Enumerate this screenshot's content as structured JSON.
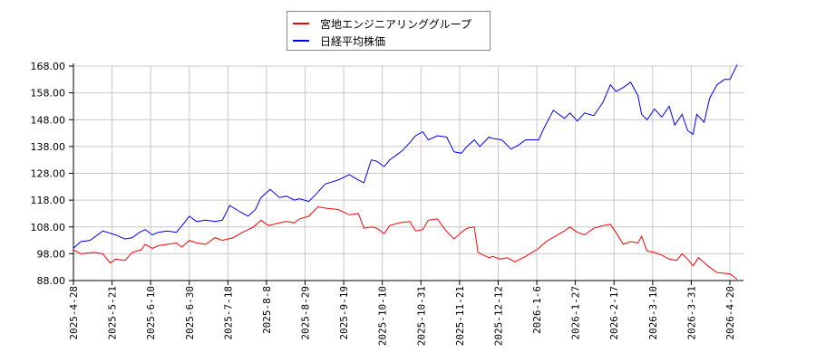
{
  "legend": {
    "items": [
      {
        "label": "宮地エンジニアリンググループ",
        "color": "#ff0000"
      },
      {
        "label": "日経平均株価",
        "color": "#0000ff"
      }
    ]
  },
  "chart_data": {
    "type": "line",
    "title": "",
    "xlabel": "",
    "ylabel": "",
    "ylim": [
      88,
      168
    ],
    "y_ticks": [
      "168.00",
      "158.00",
      "148.00",
      "138.00",
      "128.00",
      "118.00",
      "108.00",
      "98.00",
      "88.00"
    ],
    "x_ticks": [
      "2025-4-28",
      "2025-5-21",
      "2025-6-10",
      "2025-6-30",
      "2025-7-18",
      "2025-8-8",
      "2025-8-29",
      "2025-9-19",
      "2025-10-10",
      "2025-10-31",
      "2025-11-21",
      "2025-12-12",
      "2026-1-6",
      "2026-1-27",
      "2026-2-17",
      "2026-3-10",
      "2026-3-31",
      "2026-4-20"
    ],
    "grid": true,
    "legend_position": "top-center",
    "series": [
      {
        "name": "宮地エンジニアリンググループ",
        "color": "#ff0000",
        "points": [
          [
            "2025-4-28",
            99.5
          ],
          [
            "2025-5-2",
            98.0
          ],
          [
            "2025-5-9",
            98.5
          ],
          [
            "2025-5-14",
            98.0
          ],
          [
            "2025-5-18",
            94.5
          ],
          [
            "2025-5-21",
            96.0
          ],
          [
            "2025-5-26",
            95.5
          ],
          [
            "2025-5-30",
            98.5
          ],
          [
            "2025-6-4",
            99.5
          ],
          [
            "2025-6-6",
            101.5
          ],
          [
            "2025-6-10",
            100.0
          ],
          [
            "2025-6-13",
            101.0
          ],
          [
            "2025-6-18",
            101.5
          ],
          [
            "2025-6-23",
            102.0
          ],
          [
            "2025-6-26",
            100.5
          ],
          [
            "2025-6-30",
            103.0
          ],
          [
            "2025-7-4",
            102.0
          ],
          [
            "2025-7-9",
            101.5
          ],
          [
            "2025-7-14",
            104.0
          ],
          [
            "2025-7-18",
            103.0
          ],
          [
            "2025-7-24",
            104.0
          ],
          [
            "2025-7-29",
            106.0
          ],
          [
            "2025-8-4",
            108.0
          ],
          [
            "2025-8-8",
            110.5
          ],
          [
            "2025-8-12",
            108.5
          ],
          [
            "2025-8-18",
            109.5
          ],
          [
            "2025-8-22",
            110.0
          ],
          [
            "2025-8-26",
            109.5
          ],
          [
            "2025-8-29",
            111.0
          ],
          [
            "2025-9-3",
            112.0
          ],
          [
            "2025-9-8",
            115.5
          ],
          [
            "2025-9-12",
            115.0
          ],
          [
            "2025-9-19",
            114.5
          ],
          [
            "2025-9-25",
            112.5
          ],
          [
            "2025-9-30",
            113.0
          ],
          [
            "2025-10-3",
            107.5
          ],
          [
            "2025-10-7",
            108.0
          ],
          [
            "2025-10-10",
            107.5
          ],
          [
            "2025-10-14",
            105.5
          ],
          [
            "2025-10-17",
            108.5
          ],
          [
            "2025-10-22",
            109.5
          ],
          [
            "2025-10-28",
            110.0
          ],
          [
            "2025-10-31",
            106.5
          ],
          [
            "2025-11-4",
            107.0
          ],
          [
            "2025-11-7",
            110.5
          ],
          [
            "2025-11-12",
            111.0
          ],
          [
            "2025-11-16",
            107.0
          ],
          [
            "2025-11-21",
            103.5
          ],
          [
            "2025-11-25",
            106.0
          ],
          [
            "2025-11-28",
            107.5
          ],
          [
            "2025-12-2",
            108.0
          ],
          [
            "2025-12-4",
            98.5
          ],
          [
            "2025-12-10",
            96.5
          ],
          [
            "2025-12-12",
            97.0
          ],
          [
            "2025-12-16",
            96.0
          ],
          [
            "2025-12-20",
            96.5
          ],
          [
            "2025-12-24",
            95.0
          ],
          [
            "2025-12-30",
            97.0
          ],
          [
            "2026-1-6",
            100.0
          ],
          [
            "2026-1-10",
            102.5
          ],
          [
            "2026-1-15",
            104.5
          ],
          [
            "2026-1-20",
            106.5
          ],
          [
            "2026-1-23",
            108.0
          ],
          [
            "2026-1-27",
            106.0
          ],
          [
            "2026-1-31",
            105.0
          ],
          [
            "2026-2-5",
            107.5
          ],
          [
            "2026-2-10",
            108.5
          ],
          [
            "2026-2-14",
            109.0
          ],
          [
            "2026-2-17",
            106.0
          ],
          [
            "2026-2-21",
            101.5
          ],
          [
            "2026-2-25",
            102.5
          ],
          [
            "2026-3-1",
            102.0
          ],
          [
            "2026-3-3",
            104.5
          ],
          [
            "2026-3-6",
            99.0
          ],
          [
            "2026-3-10",
            98.5
          ],
          [
            "2026-3-14",
            97.5
          ],
          [
            "2026-3-18",
            96.0
          ],
          [
            "2026-3-22",
            95.5
          ],
          [
            "2026-3-25",
            98.0
          ],
          [
            "2026-3-28",
            96.0
          ],
          [
            "2026-3-31",
            93.5
          ],
          [
            "2026-4-3",
            96.5
          ],
          [
            "2026-4-8",
            93.5
          ],
          [
            "2026-4-13",
            91.0
          ],
          [
            "2026-4-20",
            90.5
          ],
          [
            "2026-4-24",
            88.5
          ]
        ]
      },
      {
        "name": "日経平均株価",
        "color": "#0000ff",
        "points": [
          [
            "2025-4-28",
            100.0
          ],
          [
            "2025-5-2",
            102.5
          ],
          [
            "2025-5-7",
            103.0
          ],
          [
            "2025-5-12",
            105.5
          ],
          [
            "2025-5-14",
            106.5
          ],
          [
            "2025-5-21",
            105.0
          ],
          [
            "2025-5-26",
            103.5
          ],
          [
            "2025-5-30",
            104.0
          ],
          [
            "2025-6-3",
            106.0
          ],
          [
            "2025-6-6",
            107.0
          ],
          [
            "2025-6-10",
            105.0
          ],
          [
            "2025-6-13",
            106.0
          ],
          [
            "2025-6-18",
            106.5
          ],
          [
            "2025-6-23",
            106.0
          ],
          [
            "2025-6-26",
            108.5
          ],
          [
            "2025-6-30",
            112.0
          ],
          [
            "2025-7-4",
            110.0
          ],
          [
            "2025-7-9",
            110.5
          ],
          [
            "2025-7-14",
            110.0
          ],
          [
            "2025-7-18",
            110.5
          ],
          [
            "2025-7-22",
            116.0
          ],
          [
            "2025-7-28",
            113.5
          ],
          [
            "2025-8-1",
            112.0
          ],
          [
            "2025-8-5",
            114.5
          ],
          [
            "2025-8-8",
            119.0
          ],
          [
            "2025-8-13",
            122.0
          ],
          [
            "2025-8-18",
            119.0
          ],
          [
            "2025-8-22",
            119.5
          ],
          [
            "2025-8-26",
            118.0
          ],
          [
            "2025-8-29",
            118.5
          ],
          [
            "2025-9-3",
            117.5
          ],
          [
            "2025-9-8",
            121.0
          ],
          [
            "2025-9-12",
            124.0
          ],
          [
            "2025-9-19",
            125.5
          ],
          [
            "2025-9-25",
            127.5
          ],
          [
            "2025-9-30",
            125.5
          ],
          [
            "2025-10-3",
            124.5
          ],
          [
            "2025-10-7",
            133.0
          ],
          [
            "2025-10-10",
            132.5
          ],
          [
            "2025-10-14",
            130.5
          ],
          [
            "2025-10-17",
            133.0
          ],
          [
            "2025-10-21",
            135.0
          ],
          [
            "2025-10-24",
            136.5
          ],
          [
            "2025-10-28",
            139.5
          ],
          [
            "2025-10-31",
            142.0
          ],
          [
            "2025-11-4",
            143.5
          ],
          [
            "2025-11-7",
            140.5
          ],
          [
            "2025-11-12",
            142.0
          ],
          [
            "2025-11-17",
            141.5
          ],
          [
            "2025-11-21",
            136.0
          ],
          [
            "2025-11-25",
            135.5
          ],
          [
            "2025-11-28",
            138.0
          ],
          [
            "2025-12-2",
            140.5
          ],
          [
            "2025-12-5",
            138.0
          ],
          [
            "2025-12-10",
            141.5
          ],
          [
            "2025-12-12",
            141.0
          ],
          [
            "2025-12-17",
            140.5
          ],
          [
            "2025-12-22",
            137.0
          ],
          [
            "2025-12-26",
            138.5
          ],
          [
            "2025-12-30",
            140.5
          ],
          [
            "2026-1-6",
            140.5
          ],
          [
            "2026-1-9",
            145.0
          ],
          [
            "2026-1-14",
            151.5
          ],
          [
            "2026-1-20",
            148.5
          ],
          [
            "2026-1-23",
            150.5
          ],
          [
            "2026-1-27",
            147.5
          ],
          [
            "2026-1-31",
            150.5
          ],
          [
            "2026-2-5",
            149.5
          ],
          [
            "2026-2-10",
            154.5
          ],
          [
            "2026-2-14",
            161.0
          ],
          [
            "2026-2-17",
            158.5
          ],
          [
            "2026-2-21",
            160.0
          ],
          [
            "2026-2-25",
            162.0
          ],
          [
            "2026-3-1",
            157.0
          ],
          [
            "2026-3-3",
            150.0
          ],
          [
            "2026-3-6",
            148.0
          ],
          [
            "2026-3-10",
            152.0
          ],
          [
            "2026-3-14",
            149.0
          ],
          [
            "2026-3-18",
            153.0
          ],
          [
            "2026-3-21",
            146.0
          ],
          [
            "2026-3-25",
            150.0
          ],
          [
            "2026-3-28",
            144.0
          ],
          [
            "2026-3-31",
            142.5
          ],
          [
            "2026-4-2",
            150.0
          ],
          [
            "2026-4-6",
            147.0
          ],
          [
            "2026-4-9",
            156.0
          ],
          [
            "2026-4-13",
            161.0
          ],
          [
            "2026-4-17",
            163.0
          ],
          [
            "2026-4-20",
            163.0
          ],
          [
            "2026-4-24",
            168.5
          ]
        ]
      }
    ]
  }
}
